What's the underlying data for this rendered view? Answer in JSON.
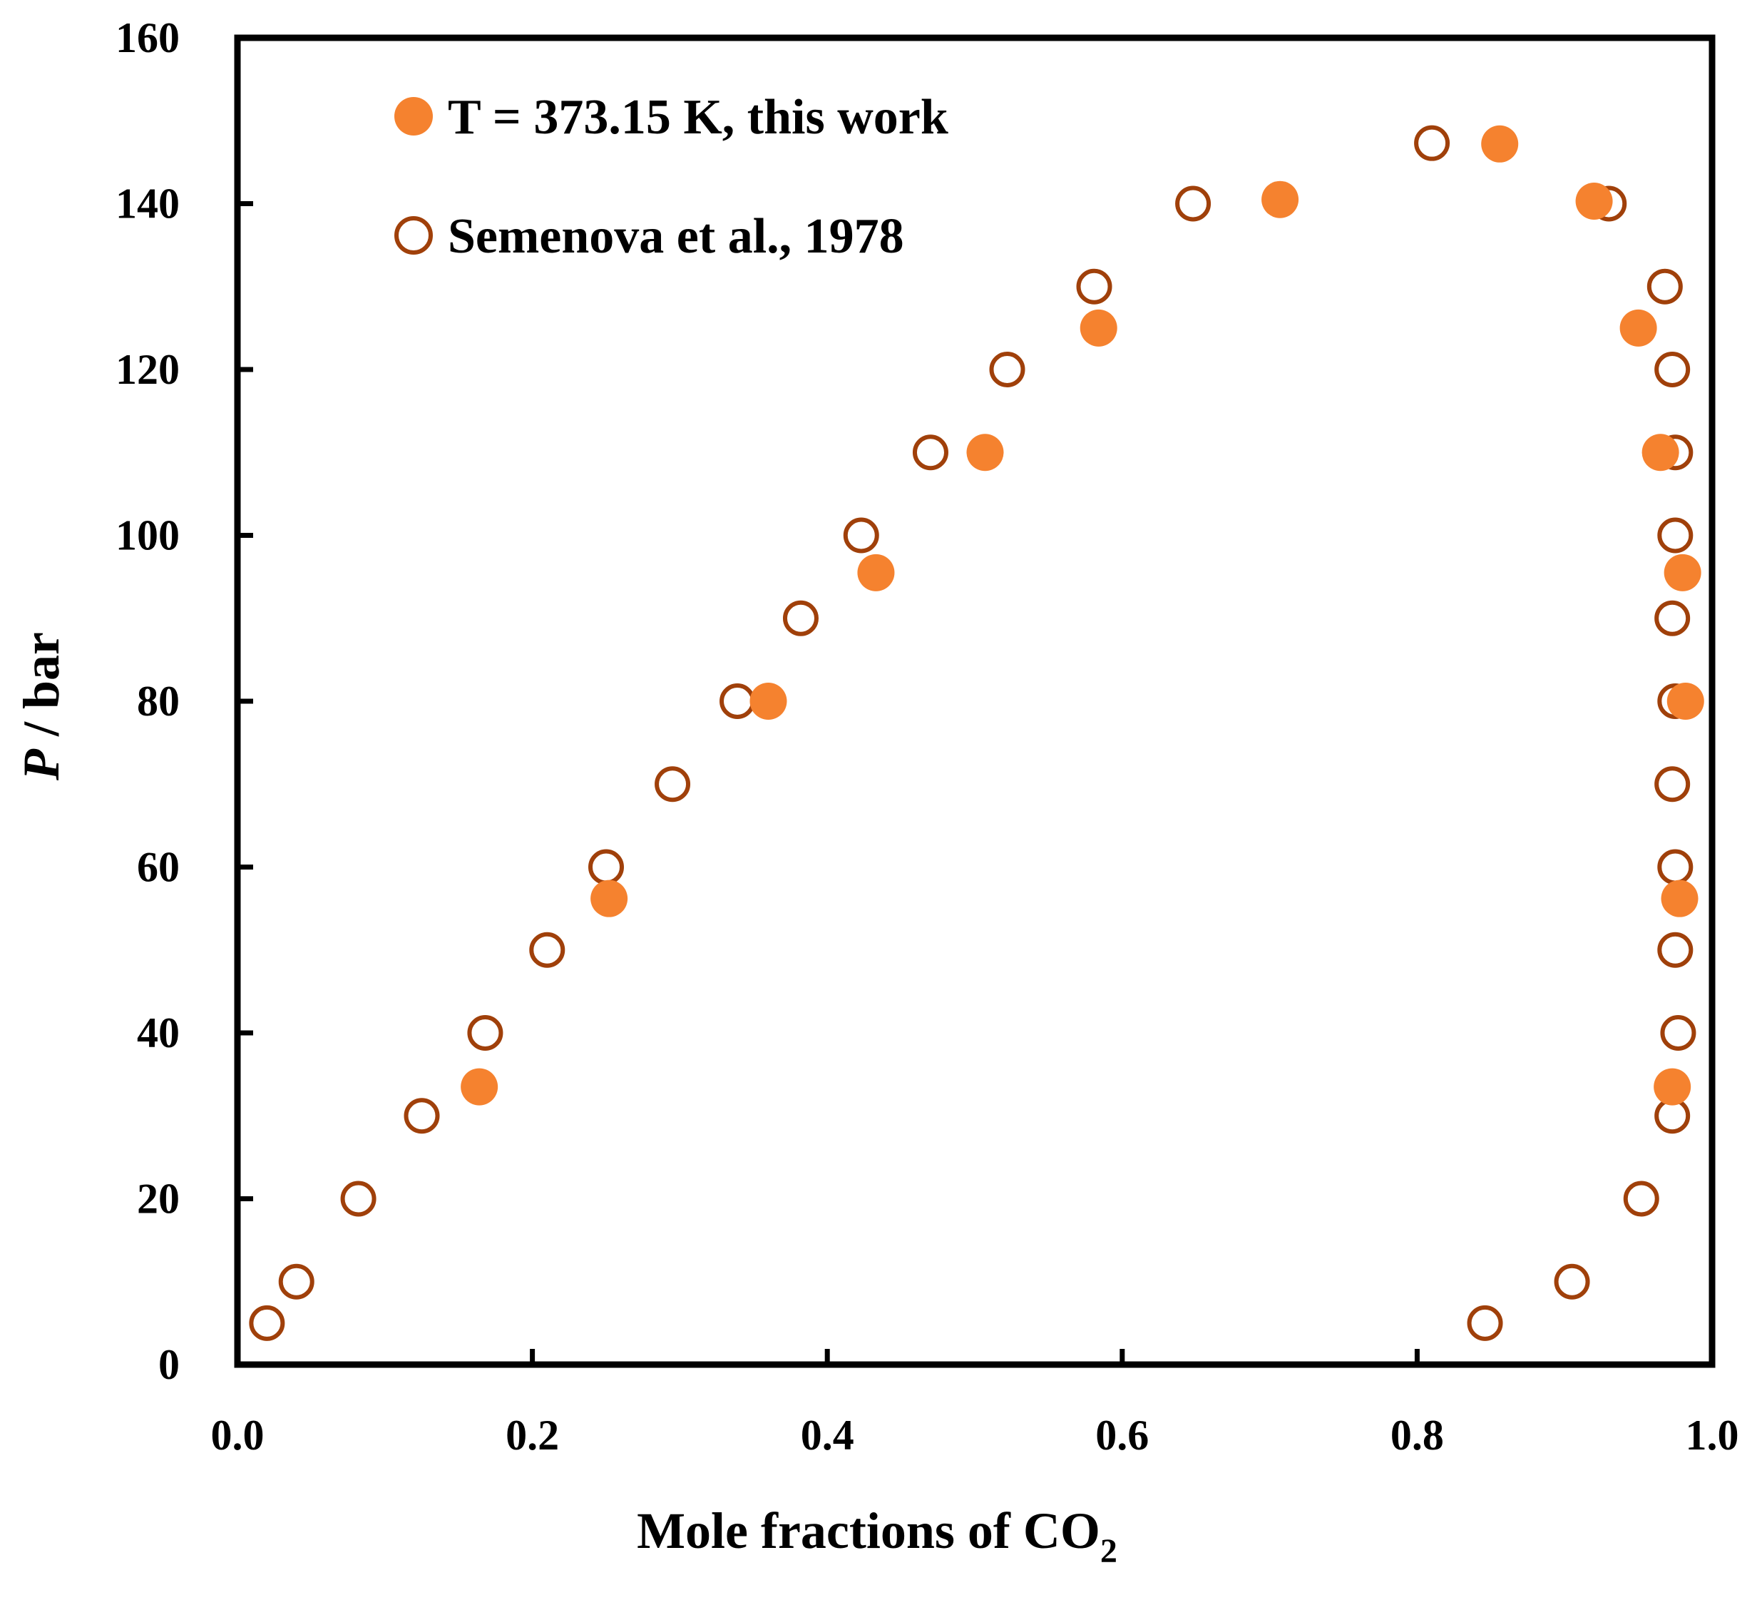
{
  "chart_data": {
    "type": "scatter",
    "title": "",
    "xlabel": "Mole fractions of CO",
    "xlabel_sub": "2",
    "ylabel_italic": "P",
    "ylabel_rest": " / bar",
    "xlim": [
      0.0,
      1.0
    ],
    "ylim": [
      0,
      160
    ],
    "xticks": [
      0.0,
      0.2,
      0.4,
      0.6,
      0.8,
      1.0
    ],
    "xtick_labels": [
      "0.0",
      "0.2",
      "0.4",
      "0.6",
      "0.8",
      "1.0"
    ],
    "yticks": [
      0,
      20,
      40,
      60,
      80,
      100,
      120,
      140,
      160
    ],
    "ytick_labels": [
      "0",
      "20",
      "40",
      "60",
      "80",
      "100",
      "120",
      "140",
      "160"
    ],
    "grid": false,
    "legend_position": "top-left",
    "series": [
      {
        "name": "T = 373.15 K, this work",
        "marker": "filled-circle",
        "color": "#f5822f",
        "points": [
          [
            0.164,
            33.5
          ],
          [
            0.252,
            56.2
          ],
          [
            0.36,
            80
          ],
          [
            0.433,
            95.5
          ],
          [
            0.507,
            110
          ],
          [
            0.584,
            125
          ],
          [
            0.707,
            140.5
          ],
          [
            0.856,
            147.2
          ],
          [
            0.92,
            140.3
          ],
          [
            0.95,
            125
          ],
          [
            0.965,
            110
          ],
          [
            0.98,
            95.5
          ],
          [
            0.982,
            80
          ],
          [
            0.978,
            56.2
          ],
          [
            0.973,
            33.5
          ]
        ]
      },
      {
        "name": "Semenova et al., 1978",
        "marker": "open-circle",
        "color": "#a0400a",
        "points": [
          [
            0.02,
            5
          ],
          [
            0.04,
            10
          ],
          [
            0.082,
            20
          ],
          [
            0.125,
            30
          ],
          [
            0.168,
            40
          ],
          [
            0.21,
            50
          ],
          [
            0.25,
            60
          ],
          [
            0.295,
            70
          ],
          [
            0.339,
            80
          ],
          [
            0.382,
            90
          ],
          [
            0.423,
            100
          ],
          [
            0.47,
            110
          ],
          [
            0.522,
            120
          ],
          [
            0.581,
            130
          ],
          [
            0.648,
            140
          ],
          [
            0.81,
            147.3
          ],
          [
            0.93,
            140
          ],
          [
            0.968,
            130
          ],
          [
            0.973,
            120
          ],
          [
            0.975,
            110
          ],
          [
            0.975,
            100
          ],
          [
            0.973,
            90
          ],
          [
            0.975,
            80
          ],
          [
            0.973,
            70
          ],
          [
            0.975,
            60
          ],
          [
            0.975,
            50
          ],
          [
            0.977,
            40
          ],
          [
            0.973,
            30
          ],
          [
            0.952,
            20
          ],
          [
            0.905,
            10
          ],
          [
            0.846,
            5
          ]
        ]
      }
    ]
  }
}
